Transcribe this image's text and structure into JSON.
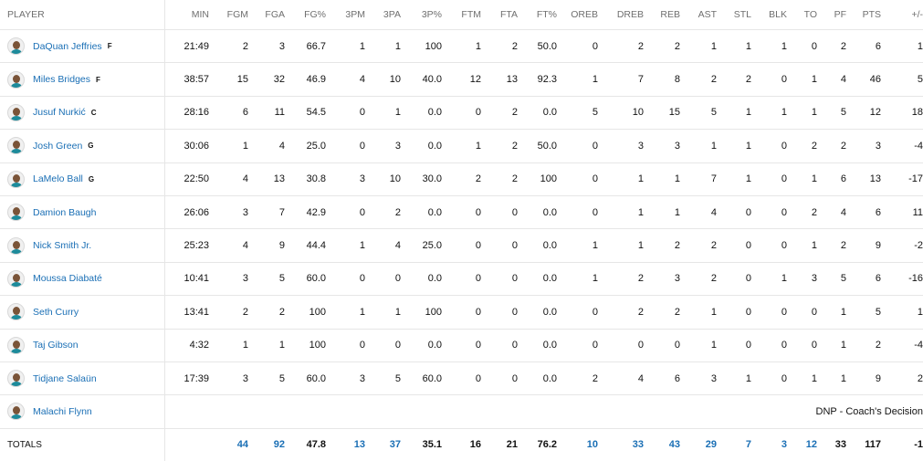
{
  "columns": [
    "PLAYER",
    "MIN",
    "FGM",
    "FGA",
    "FG%",
    "3PM",
    "3PA",
    "3P%",
    "FTM",
    "FTA",
    "FT%",
    "OREB",
    "DREB",
    "REB",
    "AST",
    "STL",
    "BLK",
    "TO",
    "PF",
    "PTS",
    "+/-"
  ],
  "players": [
    {
      "name": "DaQuan Jeffries",
      "pos": "F",
      "dnp": "",
      "stats": [
        "21:49",
        "2",
        "3",
        "66.7",
        "1",
        "1",
        "100",
        "1",
        "2",
        "50.0",
        "0",
        "2",
        "2",
        "1",
        "1",
        "1",
        "0",
        "2",
        "6",
        "1"
      ]
    },
    {
      "name": "Miles Bridges",
      "pos": "F",
      "dnp": "",
      "stats": [
        "38:57",
        "15",
        "32",
        "46.9",
        "4",
        "10",
        "40.0",
        "12",
        "13",
        "92.3",
        "1",
        "7",
        "8",
        "2",
        "2",
        "0",
        "1",
        "4",
        "46",
        "5"
      ]
    },
    {
      "name": "Jusuf Nurkić",
      "pos": "C",
      "dnp": "",
      "stats": [
        "28:16",
        "6",
        "11",
        "54.5",
        "0",
        "1",
        "0.0",
        "0",
        "2",
        "0.0",
        "5",
        "10",
        "15",
        "5",
        "1",
        "1",
        "1",
        "5",
        "12",
        "18"
      ]
    },
    {
      "name": "Josh Green",
      "pos": "G",
      "dnp": "",
      "stats": [
        "30:06",
        "1",
        "4",
        "25.0",
        "0",
        "3",
        "0.0",
        "1",
        "2",
        "50.0",
        "0",
        "3",
        "3",
        "1",
        "1",
        "0",
        "2",
        "2",
        "3",
        "-4"
      ]
    },
    {
      "name": "LaMelo Ball",
      "pos": "G",
      "dnp": "",
      "stats": [
        "22:50",
        "4",
        "13",
        "30.8",
        "3",
        "10",
        "30.0",
        "2",
        "2",
        "100",
        "0",
        "1",
        "1",
        "7",
        "1",
        "0",
        "1",
        "6",
        "13",
        "-17"
      ]
    },
    {
      "name": "Damion Baugh",
      "pos": "",
      "dnp": "",
      "stats": [
        "26:06",
        "3",
        "7",
        "42.9",
        "0",
        "2",
        "0.0",
        "0",
        "0",
        "0.0",
        "0",
        "1",
        "1",
        "4",
        "0",
        "0",
        "2",
        "4",
        "6",
        "11"
      ]
    },
    {
      "name": "Nick Smith Jr.",
      "pos": "",
      "dnp": "",
      "stats": [
        "25:23",
        "4",
        "9",
        "44.4",
        "1",
        "4",
        "25.0",
        "0",
        "0",
        "0.0",
        "1",
        "1",
        "2",
        "2",
        "0",
        "0",
        "1",
        "2",
        "9",
        "-2"
      ]
    },
    {
      "name": "Moussa Diabaté",
      "pos": "",
      "dnp": "",
      "stats": [
        "10:41",
        "3",
        "5",
        "60.0",
        "0",
        "0",
        "0.0",
        "0",
        "0",
        "0.0",
        "1",
        "2",
        "3",
        "2",
        "0",
        "1",
        "3",
        "5",
        "6",
        "-16"
      ]
    },
    {
      "name": "Seth Curry",
      "pos": "",
      "dnp": "",
      "stats": [
        "13:41",
        "2",
        "2",
        "100",
        "1",
        "1",
        "100",
        "0",
        "0",
        "0.0",
        "0",
        "2",
        "2",
        "1",
        "0",
        "0",
        "0",
        "1",
        "5",
        "1"
      ]
    },
    {
      "name": "Taj Gibson",
      "pos": "",
      "dnp": "",
      "stats": [
        "4:32",
        "1",
        "1",
        "100",
        "0",
        "0",
        "0.0",
        "0",
        "0",
        "0.0",
        "0",
        "0",
        "0",
        "1",
        "0",
        "0",
        "0",
        "1",
        "2",
        "-4"
      ]
    },
    {
      "name": "Tidjane Salaün",
      "pos": "",
      "dnp": "",
      "stats": [
        "17:39",
        "3",
        "5",
        "60.0",
        "3",
        "5",
        "60.0",
        "0",
        "0",
        "0.0",
        "2",
        "4",
        "6",
        "3",
        "1",
        "0",
        "1",
        "1",
        "9",
        "2"
      ]
    },
    {
      "name": "Malachi Flynn",
      "pos": "",
      "dnp": "DNP - Coach's Decision",
      "stats": []
    }
  ],
  "totals": {
    "label": "TOTALS",
    "stats": [
      "",
      "44",
      "92",
      "47.8",
      "13",
      "37",
      "35.1",
      "16",
      "21",
      "76.2",
      "10",
      "33",
      "43",
      "29",
      "7",
      "3",
      "12",
      "33",
      "117",
      "-1"
    ]
  },
  "link_columns": [
    1,
    2,
    4,
    5,
    10,
    11,
    12,
    13,
    14,
    15,
    16
  ],
  "colors": {
    "link": "#1a6fb5",
    "header": "#6f6f6f",
    "divider": "#e6e6e6"
  }
}
